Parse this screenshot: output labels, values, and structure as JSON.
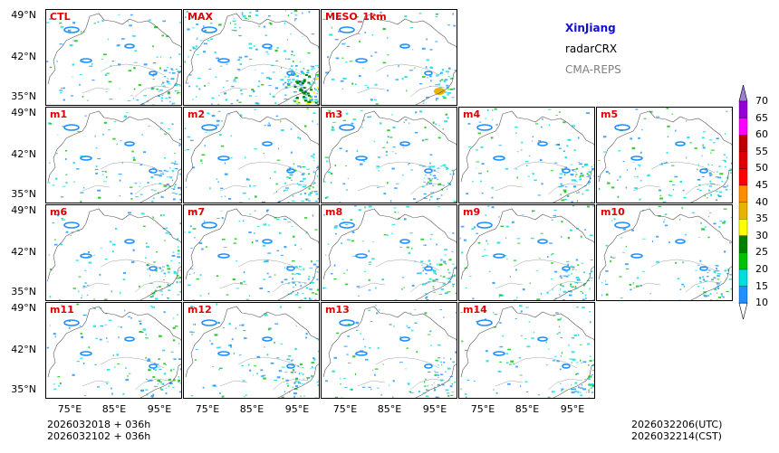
{
  "title": {
    "region": "XinJiang",
    "product": "radarCRX",
    "system": "CMA-REPS"
  },
  "colors": {
    "label": "#e00000",
    "region": "#1010d0",
    "system": "#808080"
  },
  "panels": [
    {
      "label": "CTL"
    },
    {
      "label": "MAX"
    },
    {
      "label": "MESO_1km"
    },
    {
      "label": "m1"
    },
    {
      "label": "m2"
    },
    {
      "label": "m3"
    },
    {
      "label": "m4"
    },
    {
      "label": "m5"
    },
    {
      "label": "m6"
    },
    {
      "label": "m7"
    },
    {
      "label": "m8"
    },
    {
      "label": "m9"
    },
    {
      "label": "m10"
    },
    {
      "label": "m11"
    },
    {
      "label": "m12"
    },
    {
      "label": "m13"
    },
    {
      "label": "m14"
    }
  ],
  "axes": {
    "lat_ticks": [
      "49°N",
      "42°N",
      "35°N"
    ],
    "lon_ticks": [
      "75°E",
      "85°E",
      "95°E"
    ]
  },
  "colorbar": {
    "levels": [
      "70",
      "65",
      "60",
      "55",
      "50",
      "45",
      "40",
      "35",
      "30",
      "25",
      "20",
      "15",
      "10"
    ],
    "colors": [
      "#9400d3",
      "#ff00ff",
      "#c00000",
      "#e00000",
      "#ff0000",
      "#ff8c00",
      "#e6b400",
      "#ffff00",
      "#008000",
      "#00c000",
      "#00dddd",
      "#1e90ff"
    ],
    "extend_max_color": "#9b7fd4"
  },
  "footer": {
    "init_utc": "2026032018  +  036h",
    "init_cst": "2026032102  +  036h",
    "valid_utc": "2026032206(UTC)",
    "valid_cst": "2026032214(CST)"
  }
}
